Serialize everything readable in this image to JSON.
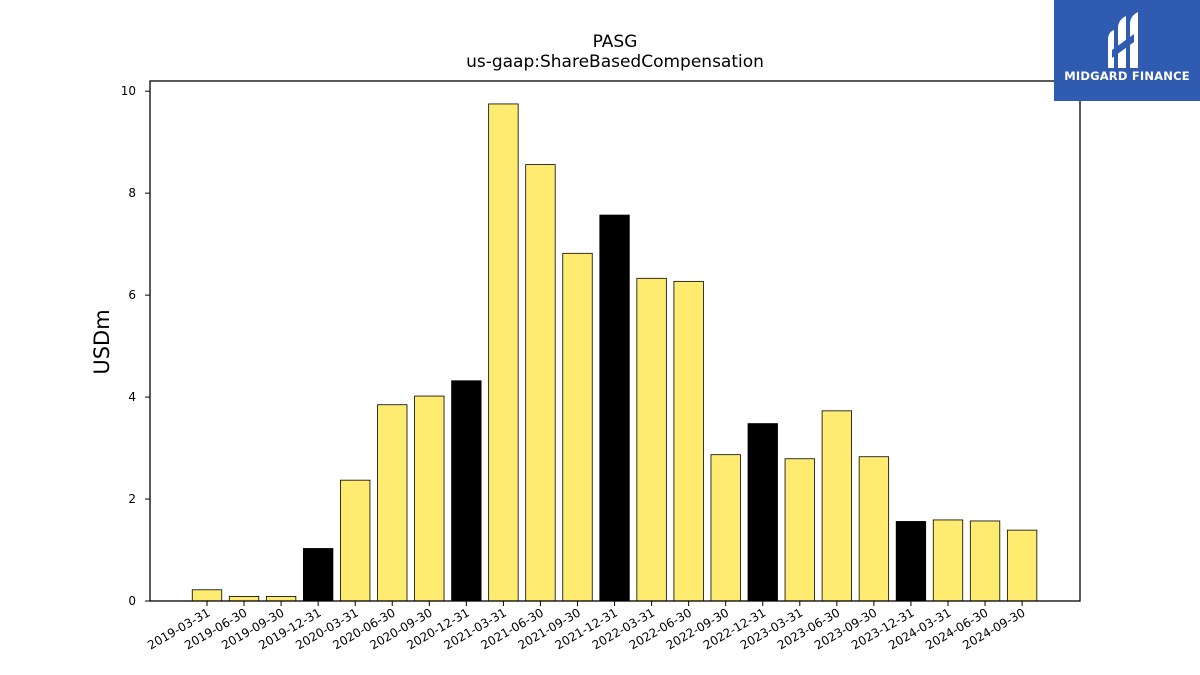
{
  "chart_data": {
    "type": "bar",
    "title": "PASG",
    "subtitle": "us-gaap:ShareBasedCompensation",
    "xlabel": "",
    "ylabel": "USDm",
    "ylim": [
      0,
      10.2
    ],
    "yticks": [
      0,
      2,
      4,
      6,
      8,
      10
    ],
    "grid": false,
    "categories": [
      "2019-03-31",
      "2019-06-30",
      "2019-09-30",
      "2019-12-31",
      "2020-03-31",
      "2020-06-30",
      "2020-09-30",
      "2020-12-31",
      "2021-03-31",
      "2021-06-30",
      "2021-09-30",
      "2021-12-31",
      "2022-03-31",
      "2022-06-30",
      "2022-09-30",
      "2022-12-31",
      "2023-03-31",
      "2023-06-30",
      "2023-09-30",
      "2023-12-31",
      "2024-03-31",
      "2024-06-30",
      "2024-09-30"
    ],
    "values": [
      0.22,
      0.09,
      0.09,
      1.03,
      2.37,
      3.85,
      4.02,
      4.32,
      9.75,
      8.56,
      6.82,
      7.57,
      6.33,
      6.27,
      2.87,
      3.48,
      2.79,
      3.73,
      2.83,
      1.56,
      1.59,
      1.57,
      1.39
    ],
    "bar_colors": {
      "quarter": "#ffeb70",
      "year_end": "#000000"
    }
  },
  "logo": {
    "text": "MIDGARD FINANCE",
    "background": "#2f5bb0"
  }
}
